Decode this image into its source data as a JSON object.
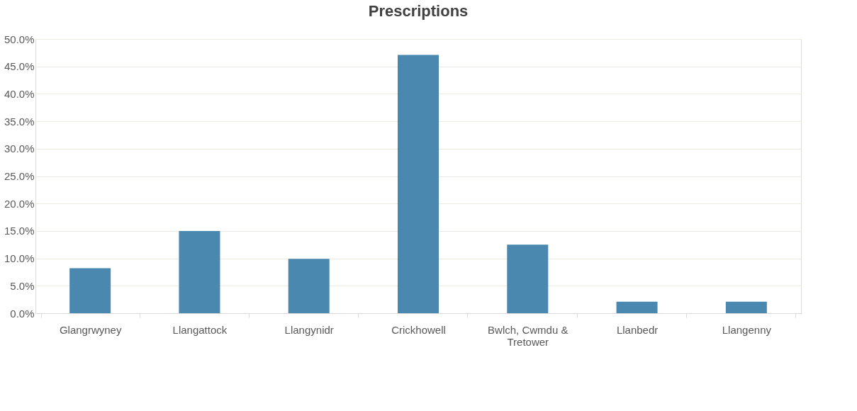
{
  "chart_data": {
    "type": "bar",
    "title": "Prescriptions",
    "categories": [
      "Glangrwyney",
      "Llangattock",
      "Llangynidr",
      "Crickhowell",
      "Bwlch, Cwmdu & Tretower",
      "Llanbedr",
      "Llangenny"
    ],
    "values": [
      8.2,
      15.0,
      9.9,
      47.1,
      12.5,
      2.1,
      2.1
    ],
    "color": "#4a88af",
    "ylim": [
      0,
      50
    ],
    "yticks": [
      {
        "value": 0,
        "label": "0.0%"
      },
      {
        "value": 5,
        "label": "5.0%"
      },
      {
        "value": 10,
        "label": "10.0%"
      },
      {
        "value": 15,
        "label": "15.0%"
      },
      {
        "value": 20,
        "label": "20.0%"
      },
      {
        "value": 25,
        "label": "25.0%"
      },
      {
        "value": 30,
        "label": "30.0%"
      },
      {
        "value": 35,
        "label": "35.0%"
      },
      {
        "value": 40,
        "label": "40.0%"
      },
      {
        "value": 45,
        "label": "45.0%"
      },
      {
        "value": 50,
        "label": "50.0%"
      }
    ],
    "grid": "y"
  }
}
